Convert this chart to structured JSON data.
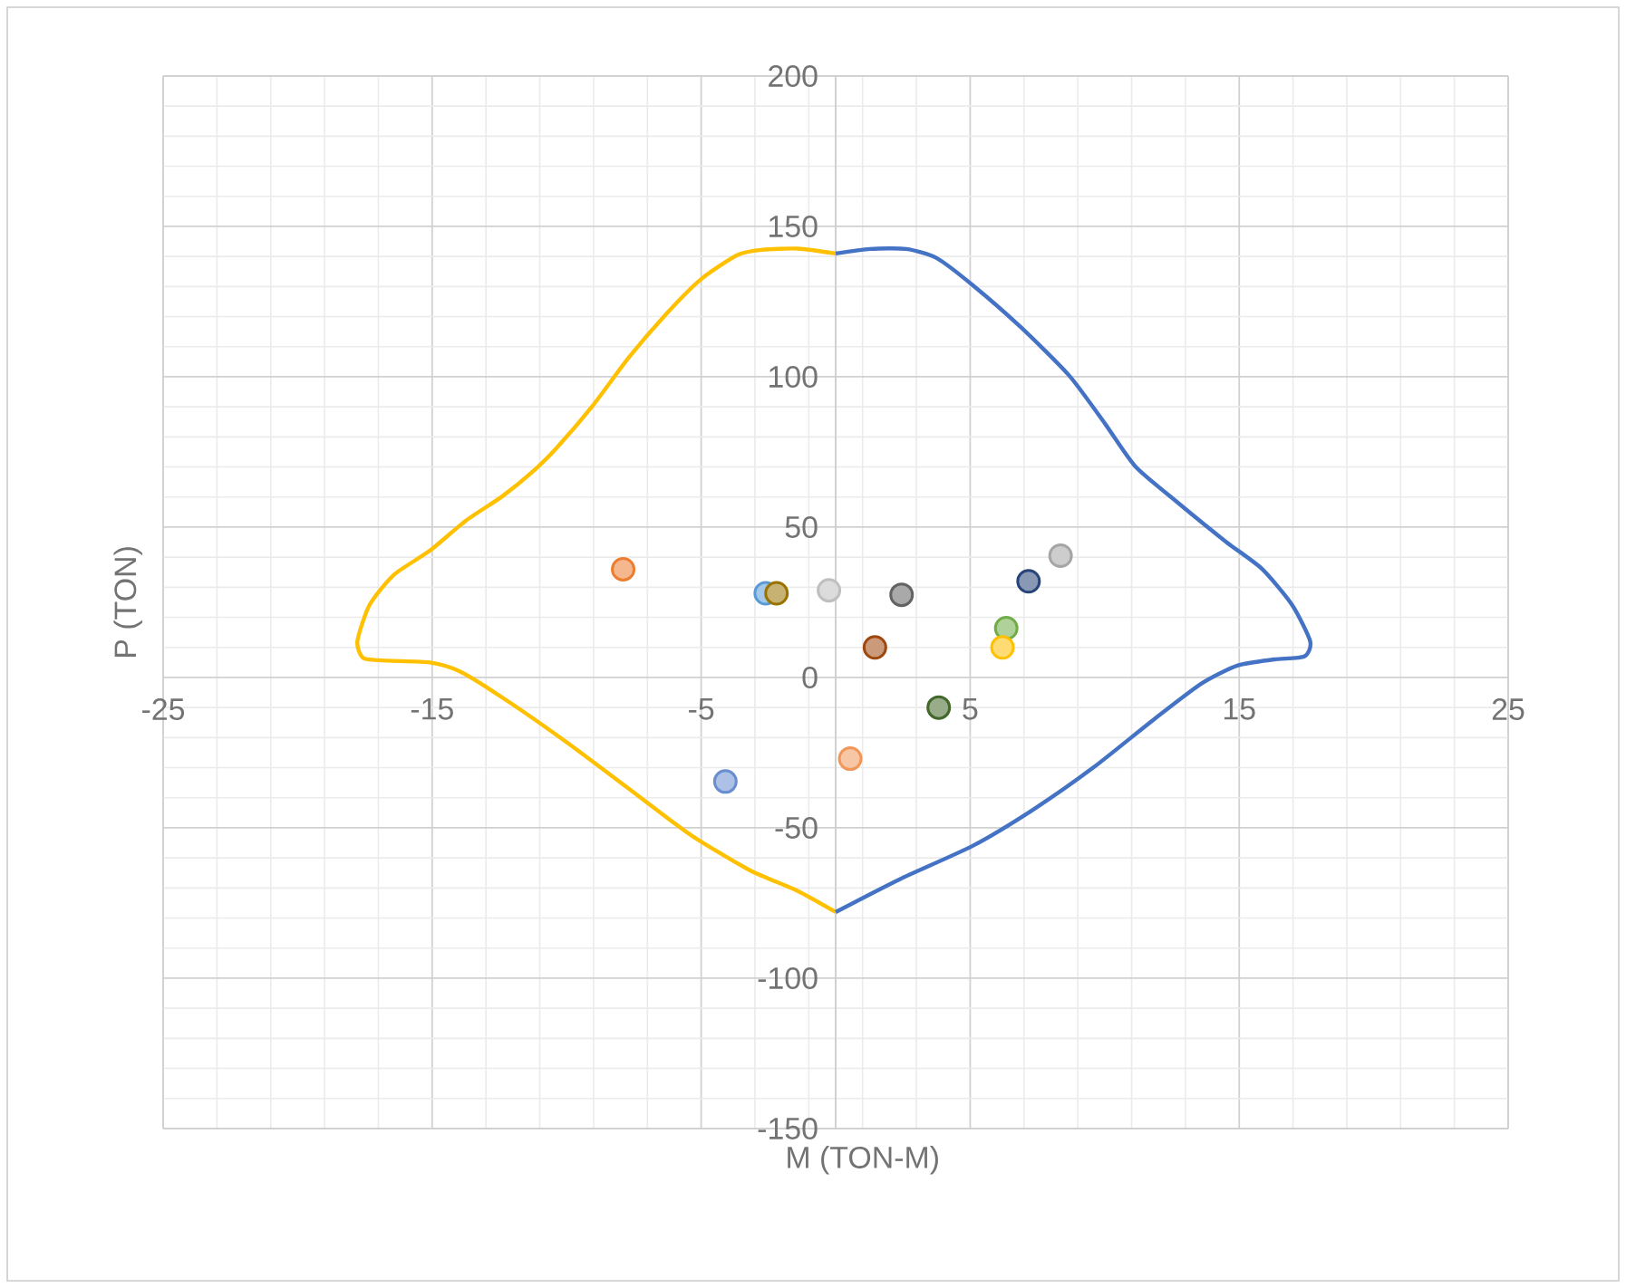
{
  "chart_data": {
    "type": "scatter",
    "xlabel": "M (TON-M)",
    "ylabel": "P (TON)",
    "xlim": [
      -25,
      25
    ],
    "ylim": [
      -150,
      200
    ],
    "xticks": [
      -25,
      -15,
      -5,
      5,
      15,
      25
    ],
    "yticks": [
      -150,
      -100,
      -50,
      0,
      50,
      100,
      150,
      200
    ],
    "grid": true,
    "marker": "circle",
    "series": [
      {
        "type": "line",
        "marker": "none",
        "color": "#ffc000",
        "x": [
          0,
          -1.41,
          -2.76,
          -3.65,
          -5.0,
          -6.34,
          -7.69,
          -9.03,
          -10.38,
          -11.28,
          -12.4,
          -13.74,
          -15.08,
          -16.43,
          -17.33,
          -17.78,
          -17.55,
          -16.66,
          -15.08,
          -13.97,
          -12.17,
          -9.93,
          -7.69,
          -5.45,
          -3.21,
          -1.41,
          0
        ],
        "values": [
          141,
          142.6,
          142.2,
          140.5,
          132.5,
          120.5,
          106.4,
          90.4,
          76.3,
          68.3,
          60.2,
          52.2,
          42.2,
          34.1,
          24.1,
          12,
          6.4,
          5.6,
          5,
          2,
          -8,
          -22,
          -37,
          -52,
          -64,
          -71,
          -78
        ]
      },
      {
        "type": "line",
        "marker": "none",
        "color": "#4472c4",
        "x": [
          0,
          1.28,
          2.62,
          3.75,
          5.09,
          6.88,
          8.68,
          10.02,
          11.14,
          12.71,
          14.5,
          15.85,
          16.97,
          17.64,
          17.42,
          16.3,
          14.95,
          13.6,
          11.82,
          9.57,
          7.33,
          5.09,
          2.4,
          0
        ],
        "values": [
          141,
          142.5,
          142.5,
          139.5,
          130.5,
          116.5,
          100.4,
          84.3,
          70.2,
          58.2,
          45.2,
          36.1,
          24.1,
          12,
          7,
          6,
          4,
          -2,
          -14,
          -30,
          -44,
          -56,
          -67,
          -78
        ]
      },
      {
        "color": "#ed7d31",
        "x": [
          -7.9
        ],
        "values": [
          36
        ]
      },
      {
        "color": "#5b9bd5",
        "x": [
          -2.6
        ],
        "values": [
          28
        ]
      },
      {
        "color": "#997300",
        "x": [
          -2.2
        ],
        "values": [
          28
        ]
      },
      {
        "color": "#bfbfbf",
        "x": [
          -0.25
        ],
        "values": [
          29
        ]
      },
      {
        "color": "#636363",
        "x": [
          2.45
        ],
        "values": [
          27.5
        ]
      },
      {
        "color": "#9e480e",
        "x": [
          1.46
        ],
        "values": [
          10
        ]
      },
      {
        "color": "#43682b",
        "x": [
          3.83
        ],
        "values": [
          -10
        ]
      },
      {
        "color": "#f1975a",
        "x": [
          0.54
        ],
        "values": [
          -27
        ]
      },
      {
        "color": "#698ed0",
        "x": [
          -4.1
        ],
        "values": [
          -34.6
        ]
      },
      {
        "color": "#70ad47",
        "x": [
          6.34
        ],
        "values": [
          16.4
        ]
      },
      {
        "color": "#ffc000",
        "x": [
          6.2
        ],
        "values": [
          10
        ]
      },
      {
        "color": "#264478",
        "x": [
          7.17
        ],
        "values": [
          32
        ]
      },
      {
        "color": "#a5a5a5",
        "x": [
          8.36
        ],
        "values": [
          40.5
        ]
      }
    ]
  }
}
